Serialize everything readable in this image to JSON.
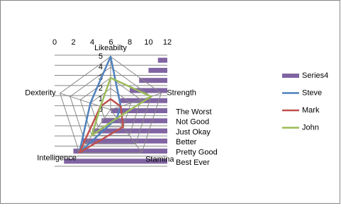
{
  "chart_data": [
    {
      "type": "bar",
      "orientation": "horizontal",
      "axis_crosses": "max",
      "categories": [
        "Best Ever",
        "Pretty Good",
        "Better",
        "Just Okay",
        "Not Good",
        "The Worst",
        null,
        null,
        null,
        null,
        null
      ],
      "series": [
        {
          "name": "Series4",
          "color": "#8064a2",
          "values": [
            1,
            2,
            3,
            4,
            5,
            6,
            7,
            8,
            9,
            10,
            11
          ]
        }
      ],
      "xlim": [
        0,
        12
      ],
      "xticks": [
        0,
        2,
        4,
        6,
        8,
        10,
        12
      ],
      "grid": true
    },
    {
      "type": "radar",
      "categories": [
        "Likeabilty",
        "Strength",
        "Stamina",
        "Intelligence",
        "Dexterity"
      ],
      "series": [
        {
          "name": "Steve",
          "color": "#4f81bd",
          "values": [
            5,
            1,
            1,
            5,
            2
          ]
        },
        {
          "name": "Mark",
          "color": "#c0504d",
          "values": [
            1,
            1,
            2,
            5,
            1
          ]
        },
        {
          "name": "John",
          "color": "#9bbb59",
          "values": [
            3,
            4,
            1,
            3,
            1
          ]
        }
      ],
      "rlim": [
        0,
        5
      ],
      "rticks": [
        0,
        1,
        2,
        3,
        4,
        5
      ],
      "grid": true
    }
  ]
}
